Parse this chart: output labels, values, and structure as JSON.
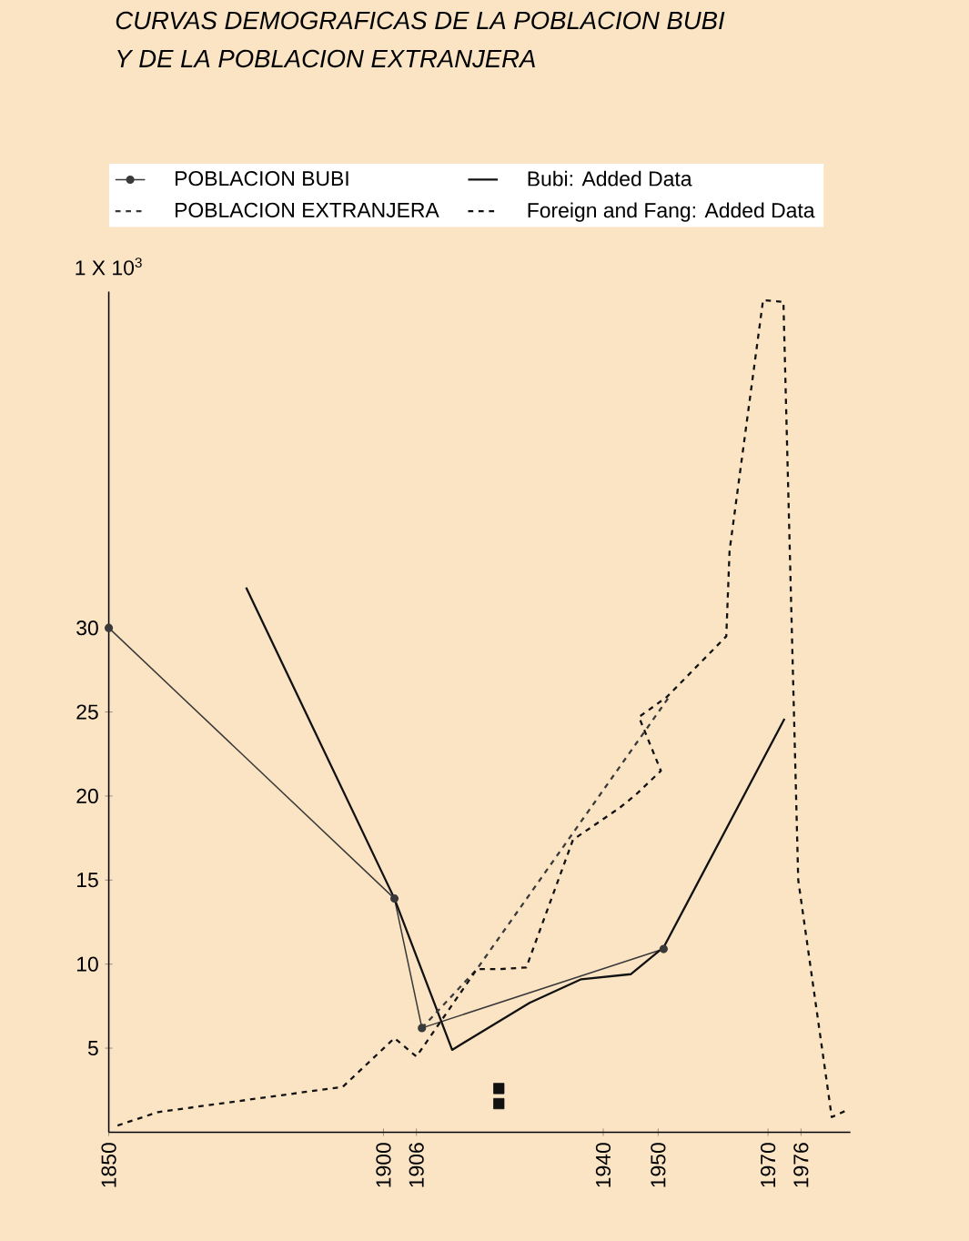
{
  "chart_data": {
    "type": "line",
    "title": "CURVAS DEMOGRAFICAS DE LA POBLACION BUBI",
    "subtitle": "Y DE LA POBLACION EXTRANJERA",
    "ylabel": "1 X 10$^{3}$",
    "xlim": [
      1850,
      1985
    ],
    "xticks": [
      1850,
      1900,
      1906,
      1940,
      1950,
      1970,
      1976
    ],
    "ylim": [
      0,
      50
    ],
    "yticks": [
      5,
      10,
      15,
      20,
      25,
      30
    ],
    "legend": "top",
    "series": [
      {
        "name": "POBLACION BUBI",
        "color": "#3a3a3a",
        "marker": "circle",
        "line_style": "solid",
        "x": [
          1850,
          1902,
          1907,
          1951
        ],
        "values": [
          30,
          13.9,
          6.2,
          10.9
        ]
      },
      {
        "name": "Bubi: Added Data",
        "color": "#111111",
        "marker": "none",
        "line_style": "solid",
        "x": [
          1875,
          1902,
          1912.5,
          1926.6,
          1936,
          1945,
          1951,
          1973
        ],
        "values": [
          32.4,
          13.9,
          4.9,
          7.7,
          9.1,
          9.4,
          11.0,
          24.6
        ]
      },
      {
        "type": "scatter",
        "color": "#111111",
        "marker": "square",
        "x": [
          1921,
          1921
        ],
        "values": [
          2.6,
          1.7
        ]
      },
      {
        "name": "POBLACION EXTRANJERA",
        "color": "#3a3a3a",
        "marker": "none",
        "line_style": "dashed",
        "x": [
          1907,
          1917,
          1952
        ],
        "values": [
          6.2,
          9.7,
          25.9
        ]
      },
      {
        "name": "Foreign and Fang: Added Data",
        "color": "#111111",
        "marker": "none",
        "line_style": "dashed",
        "x": [
          1851.6,
          1859,
          1892.6,
          1902,
          1906,
          1917,
          1921,
          1926,
          1934.5,
          1943,
          1946,
          1950.5,
          1946.5,
          1951.6,
          1962.4,
          1963,
          1969.1,
          1972.8,
          1975.5,
          1981.6,
          1984.3
        ],
        "values": [
          0.4,
          1.2,
          2.7,
          5.6,
          4.5,
          9.7,
          9.7,
          9.8,
          17.4,
          19.3,
          20.1,
          21.5,
          24.7,
          25.9,
          29.5,
          34.6,
          49.5,
          49.4,
          15.0,
          0.9,
          1.3
        ]
      }
    ]
  }
}
